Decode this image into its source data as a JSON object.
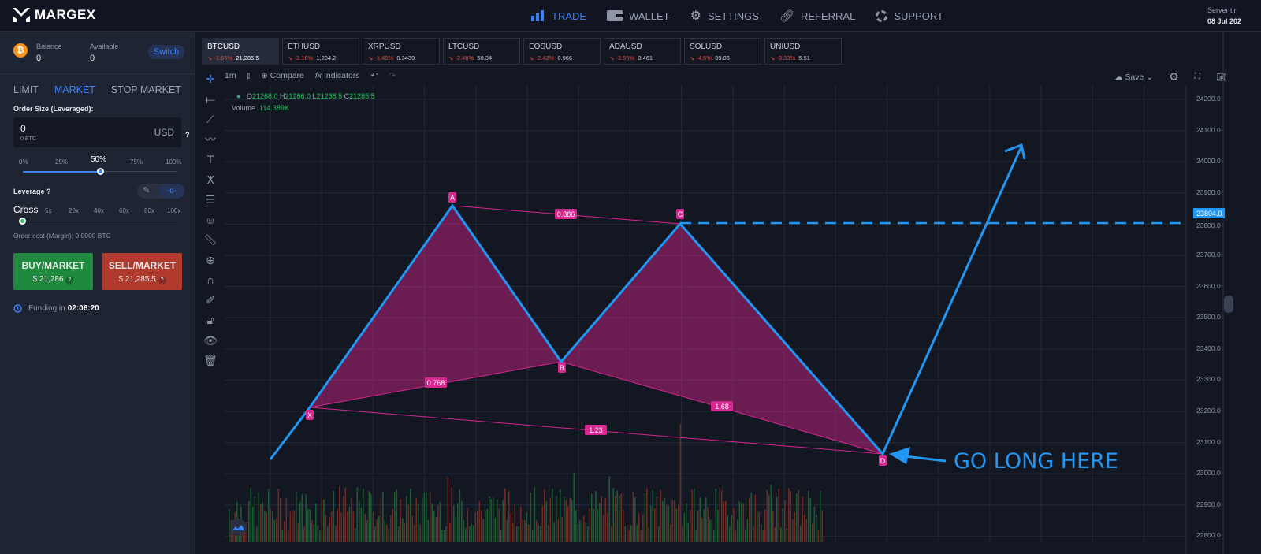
{
  "brand": "MARGEX",
  "nav": [
    {
      "label": "TRADE",
      "icon": "bar-chart-icon",
      "active": true
    },
    {
      "label": "WALLET",
      "icon": "wallet-icon"
    },
    {
      "label": "SETTINGS",
      "icon": "gear-icon"
    },
    {
      "label": "REFERRAL",
      "icon": "link-icon"
    },
    {
      "label": "SUPPORT",
      "icon": "lifebuoy-icon"
    }
  ],
  "server": {
    "label": "Server tir",
    "date": "08 Jul 202"
  },
  "account": {
    "balance_label": "Balance",
    "balance": "0",
    "available_label": "Available",
    "available": "0",
    "switch": "Switch"
  },
  "order_tabs": [
    "LIMIT",
    "MARKET",
    "STOP MARKET"
  ],
  "order": {
    "size_label": "Order Size (Leveraged):",
    "value": "0",
    "sub": "0 BTC",
    "currency": "USD",
    "help": "?",
    "size_ticks": [
      "0%",
      "25%",
      "50%",
      "75%",
      "100%"
    ],
    "size_percent": 50,
    "leverage_label": "Leverage",
    "leverage_ticks": [
      "Cross",
      "5x",
      "20x",
      "40x",
      "60x",
      "80x",
      "100x"
    ],
    "leverage_selected": "Cross",
    "cost": "Order cost (Margin): 0.0000 BTC",
    "buy": {
      "label": "BUY/MARKET",
      "price": "$ 21,286"
    },
    "sell": {
      "label": "SELL/MARKET",
      "price": "$ 21,285.5"
    },
    "funding_label": "Funding in",
    "funding": "02:06:20"
  },
  "tickers": [
    {
      "sym": "BTCUSD",
      "ch": "-1.65%",
      "px": "21,285.5"
    },
    {
      "sym": "ETHUSD",
      "ch": "-3.16%",
      "px": "1,204.2"
    },
    {
      "sym": "XRPUSD",
      "ch": "-1.49%",
      "px": "0.3439"
    },
    {
      "sym": "LTCUSD",
      "ch": "-2.46%",
      "px": "50.34"
    },
    {
      "sym": "EOSUSD",
      "ch": "-2.42%",
      "px": "0.966"
    },
    {
      "sym": "ADAUSD",
      "ch": "-3.56%",
      "px": "0.461"
    },
    {
      "sym": "SOLUSD",
      "ch": "-4.5%",
      "px": "39.86"
    },
    {
      "sym": "UNIUSD",
      "ch": "-3.33%",
      "px": "5.51"
    }
  ],
  "toolbar": {
    "interval": "1m",
    "compare": "Compare",
    "indicators": "Indicators",
    "save": "Save"
  },
  "ohlc": {
    "o": "21268.0",
    "h": "21286.0",
    "l": "21238.5",
    "c": "21285.5",
    "volume_label": "Volume",
    "volume": "114.389K"
  },
  "price_axis": [
    "24200.0",
    "24100.0",
    "24000.0",
    "23900.0",
    "23800.0",
    "23700.0",
    "23600.0",
    "23500.0",
    "23400.0",
    "23300.0",
    "23200.0",
    "23100.0",
    "23000.0",
    "22900.0",
    "22800.0"
  ],
  "price_marker": "23804.0",
  "pattern": {
    "points": [
      "X",
      "A",
      "B",
      "C",
      "D"
    ],
    "ratios": {
      "ac": "0.886",
      "xb": "0.768",
      "bd": "1.68",
      "xd": "1.23"
    }
  },
  "annotation": "GO LONG HERE",
  "colors": {
    "accent": "#3b82f6",
    "pattern": "#d6268f",
    "buy": "#1f8a3d",
    "sell": "#b03a2e",
    "line": "#2196f3"
  }
}
